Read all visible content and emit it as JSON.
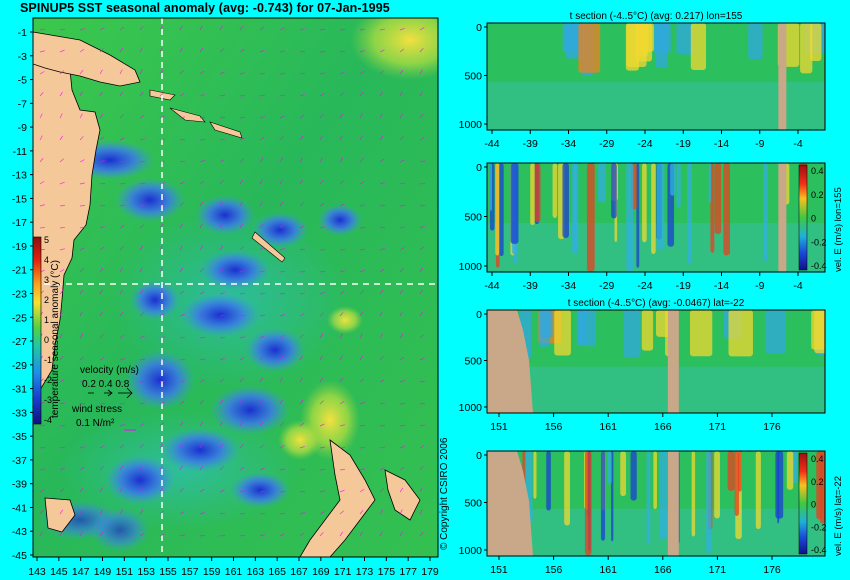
{
  "main_title": "SPINUP5 SST seasonal anomaly (avg: -0.743) for 07-Jan-1995",
  "colors": {
    "background": "#00ffff",
    "land": "#f5c89a",
    "ocean_base": "#2fc24a",
    "cold": "#1f3fd8",
    "warm": "#f0d030",
    "vector": "#ff00ff",
    "section_line": "#ffffff"
  },
  "map": {
    "y_ticks": [
      "-1",
      "-3",
      "-5",
      "-7",
      "-9",
      "-11",
      "-13",
      "-15",
      "-17",
      "-19",
      "-21",
      "-23",
      "-25",
      "-27",
      "-29",
      "-31",
      "-33",
      "-35",
      "-37",
      "-39",
      "-41",
      "-43",
      "-45"
    ],
    "x_ticks": [
      "143",
      "145",
      "147",
      "149",
      "151",
      "153",
      "155",
      "157",
      "159",
      "161",
      "163",
      "165",
      "167",
      "169",
      "171",
      "173",
      "175",
      "177",
      "179"
    ],
    "colorbar_ticks": [
      "5",
      "4",
      "3",
      "2",
      "1",
      "0",
      "-1",
      "-2",
      "-3",
      "-4"
    ],
    "colorbar_label": "temperature seasonal anomaly (°C)",
    "velocity_label": "velocity (m/s)",
    "velocity_values": "0.2 0.4 0.8",
    "wind_label": "wind stress",
    "wind_value": "0.1 N/m²",
    "copyright": "© Copyright CSIRO 2006"
  },
  "panels": [
    {
      "title": "t section (-4..5°C) (avg: 0.217) lon=155",
      "y_ticks": [
        "0",
        "500",
        "1000"
      ],
      "x_ticks": [
        "-44",
        "-39",
        "-34",
        "-29",
        "-24",
        "-19",
        "-14",
        "-9",
        "-4"
      ]
    },
    {
      "title": "",
      "y_ticks": [
        "0",
        "500",
        "1000"
      ],
      "x_ticks": [
        "-44",
        "-39",
        "-34",
        "-29",
        "-24",
        "-19",
        "-14",
        "-9",
        "-4"
      ],
      "side_label": "vel. E (m/s) lon=155",
      "cb_ticks": [
        "0.4",
        "0.2",
        "0",
        "-0.2",
        "-0.4"
      ]
    },
    {
      "title": "t section (-4..5°C) (avg: -0.0467) lat=-22",
      "y_ticks": [
        "0",
        "500",
        "1000"
      ],
      "x_ticks": [
        "151",
        "156",
        "161",
        "166",
        "171",
        "176"
      ]
    },
    {
      "title": "",
      "y_ticks": [
        "0",
        "500",
        "1000"
      ],
      "x_ticks": [
        "151",
        "156",
        "161",
        "166",
        "171",
        "176"
      ],
      "side_label": "vel. E (m/s) lat=-22",
      "cb_ticks": [
        "0.4",
        "0.2",
        "0",
        "-0.2",
        "-0.4"
      ]
    }
  ],
  "chart_data": [
    {
      "type": "heatmap",
      "title": "SPINUP5 SST seasonal anomaly (avg: -0.743) for 07-Jan-1995",
      "x_range": [
        142,
        180
      ],
      "y_range": [
        -45,
        0
      ],
      "x_ticks": [
        143,
        145,
        147,
        149,
        151,
        153,
        155,
        157,
        159,
        161,
        163,
        165,
        167,
        169,
        171,
        173,
        175,
        177,
        179
      ],
      "y_ticks": [
        -1,
        -3,
        -5,
        -7,
        -9,
        -11,
        -13,
        -15,
        -17,
        -19,
        -21,
        -23,
        -25,
        -27,
        -29,
        -31,
        -33,
        -35,
        -37,
        -39,
        -41,
        -43,
        -45
      ],
      "colorbar_range": [
        -4,
        5
      ],
      "colorbar_label": "temperature seasonal anomaly (°C)",
      "average": -0.743,
      "date": "07-Jan-1995",
      "section_lines": {
        "lon": 155,
        "lat": -22
      }
    },
    {
      "type": "heatmap",
      "title": "t section (-4..5°C) (avg: 0.217) lon=155",
      "x_ticks": [
        -44,
        -39,
        -34,
        -29,
        -24,
        -19,
        -14,
        -9,
        -4
      ],
      "y_ticks": [
        0,
        500,
        1000
      ],
      "average": 0.217,
      "value_range": [
        -4,
        5
      ]
    },
    {
      "type": "heatmap",
      "title": "",
      "x_ticks": [
        -44,
        -39,
        -34,
        -29,
        -24,
        -19,
        -14,
        -9,
        -4
      ],
      "y_ticks": [
        0,
        500,
        1000
      ],
      "colorbar_label": "vel. E (m/s) lon=155",
      "colorbar_range": [
        -0.4,
        0.4
      ]
    },
    {
      "type": "heatmap",
      "title": "t section (-4..5°C) (avg: -0.0467) lat=-22",
      "x_ticks": [
        151,
        156,
        161,
        166,
        171,
        176
      ],
      "y_ticks": [
        0,
        500,
        1000
      ],
      "average": -0.0467,
      "value_range": [
        -4,
        5
      ]
    },
    {
      "type": "heatmap",
      "title": "",
      "x_ticks": [
        151,
        156,
        161,
        166,
        171,
        176
      ],
      "y_ticks": [
        0,
        500,
        1000
      ],
      "colorbar_label": "vel. E (m/s) lat=-22",
      "colorbar_range": [
        -0.4,
        0.4
      ]
    }
  ]
}
